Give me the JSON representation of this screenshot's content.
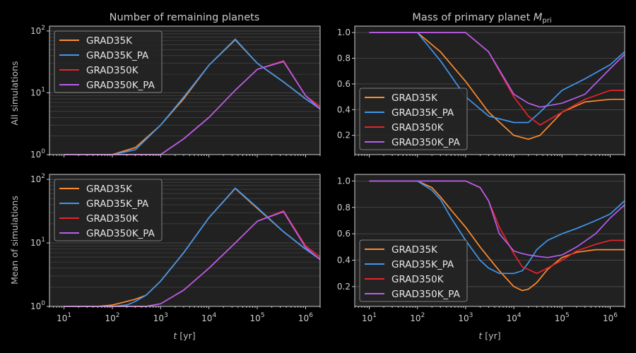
{
  "figure": {
    "titles": [
      "Number of remaining planets",
      "Mass of primary planet"
    ],
    "title_math": {
      "main": "M",
      "sub": "pri"
    },
    "row_labels": [
      "All simulations",
      "Mean of simulations"
    ],
    "xlabel": {
      "var": "t",
      "unit": "[yr]"
    }
  },
  "colors": {
    "GRAD35K": "#ff8c2e",
    "GRAD35K_PA": "#3f97f0",
    "GRAD350K": "#e6242c",
    "GRAD350K_PA": "#b65ef0",
    "background": "#000000",
    "axes_face": "#212121"
  },
  "chart_data": [
    {
      "id": "planets-all",
      "type": "line",
      "title": "Number of remaining planets",
      "ylabel": "All simulations",
      "xscale": "log",
      "yscale": "log",
      "xlim": [
        5,
        2000000
      ],
      "ylim": [
        1,
        120
      ],
      "legend": "top-left",
      "legend_entries": [
        "GRAD35K",
        "GRAD35K_PA",
        "GRAD350K",
        "GRAD350K_PA"
      ],
      "x": [
        10,
        100,
        300,
        1000,
        3000,
        10000,
        35000,
        100000,
        350000,
        1000000,
        2000000
      ],
      "series": [
        {
          "name": "GRAD35K",
          "values": [
            1,
            1,
            1.3,
            3,
            8,
            28,
            72,
            30,
            15,
            8,
            5.5
          ]
        },
        {
          "name": "GRAD35K_PA",
          "values": [
            1,
            1,
            1.2,
            3,
            8.5,
            28,
            74,
            30,
            15,
            8,
            5.5
          ]
        },
        {
          "name": "GRAD350K",
          "values": [
            1,
            1,
            1,
            1,
            1.8,
            4,
            11,
            24,
            33,
            9,
            6
          ]
        },
        {
          "name": "GRAD350K_PA",
          "values": [
            1,
            1,
            1,
            1,
            1.8,
            4,
            11,
            24,
            32,
            9,
            5.5
          ]
        }
      ]
    },
    {
      "id": "mass-all",
      "type": "line",
      "title": "Mass of primary planet",
      "xscale": "log",
      "xlim": [
        5,
        2000000
      ],
      "ylim": [
        0.05,
        1.05
      ],
      "yticks": [
        0.2,
        0.4,
        0.6,
        0.8,
        1.0
      ],
      "legend": "bottom-left",
      "legend_entries": [
        "GRAD35K",
        "GRAD35K_PA",
        "GRAD350K",
        "GRAD350K_PA"
      ],
      "x": [
        10,
        100,
        300,
        1000,
        3000,
        10000,
        20000,
        35000,
        100000,
        300000,
        1000000,
        2000000
      ],
      "series": [
        {
          "name": "GRAD35K",
          "values": [
            1,
            1,
            0.85,
            0.62,
            0.38,
            0.2,
            0.17,
            0.2,
            0.38,
            0.46,
            0.48,
            0.48
          ]
        },
        {
          "name": "GRAD35K_PA",
          "values": [
            1,
            1,
            0.78,
            0.5,
            0.35,
            0.3,
            0.3,
            0.38,
            0.55,
            0.64,
            0.75,
            0.85
          ]
        },
        {
          "name": "GRAD350K",
          "values": [
            1,
            1,
            1,
            1,
            0.85,
            0.5,
            0.35,
            0.28,
            0.38,
            0.48,
            0.55,
            0.55
          ]
        },
        {
          "name": "GRAD350K_PA",
          "values": [
            1,
            1,
            1,
            1,
            0.85,
            0.52,
            0.45,
            0.42,
            0.45,
            0.52,
            0.72,
            0.83
          ]
        }
      ]
    },
    {
      "id": "planets-mean",
      "type": "line",
      "ylabel": "Mean of simulations",
      "xscale": "log",
      "yscale": "log",
      "xlim": [
        5,
        2000000
      ],
      "ylim": [
        1,
        120
      ],
      "legend": "top-left",
      "legend_entries": [
        "GRAD35K",
        "GRAD35K_PA",
        "GRAD350K",
        "GRAD350K_PA"
      ],
      "x": [
        10,
        50,
        100,
        200,
        300,
        500,
        1000,
        3000,
        10000,
        35000,
        100000,
        350000,
        1000000,
        2000000
      ],
      "series": [
        {
          "name": "GRAD35K",
          "values": [
            1,
            1,
            1.05,
            1.2,
            1.3,
            1.5,
            2.5,
            7,
            25,
            72,
            35,
            15,
            8,
            5.5
          ]
        },
        {
          "name": "GRAD35K_PA",
          "values": [
            1,
            1,
            1,
            1.05,
            1.2,
            1.5,
            2.5,
            7,
            25,
            73,
            36,
            15,
            8,
            5.5
          ]
        },
        {
          "name": "GRAD350K",
          "values": [
            1,
            1,
            1,
            1,
            1,
            1,
            1.1,
            1.8,
            4,
            10,
            22,
            32,
            9,
            6
          ]
        },
        {
          "name": "GRAD350K_PA",
          "values": [
            1,
            1,
            1,
            1,
            1,
            1,
            1.1,
            1.8,
            4,
            10,
            22,
            31,
            8.5,
            5.5
          ]
        }
      ]
    },
    {
      "id": "mass-mean",
      "type": "line",
      "xscale": "log",
      "xlim": [
        5,
        2000000
      ],
      "ylim": [
        0.05,
        1.05
      ],
      "yticks": [
        0.2,
        0.4,
        0.6,
        0.8,
        1.0
      ],
      "legend": "bottom-left",
      "legend_entries": [
        "GRAD35K",
        "GRAD35K_PA",
        "GRAD350K",
        "GRAD350K_PA"
      ],
      "x": [
        10,
        100,
        200,
        300,
        500,
        1000,
        2000,
        3000,
        5000,
        10000,
        15000,
        20000,
        30000,
        50000,
        100000,
        200000,
        500000,
        1000000,
        2000000
      ],
      "series": [
        {
          "name": "GRAD35K",
          "values": [
            1,
            1,
            0.95,
            0.88,
            0.78,
            0.65,
            0.5,
            0.42,
            0.32,
            0.2,
            0.17,
            0.18,
            0.23,
            0.33,
            0.42,
            0.46,
            0.48,
            0.48,
            0.48
          ]
        },
        {
          "name": "GRAD35K_PA",
          "values": [
            1,
            1,
            0.93,
            0.86,
            0.72,
            0.55,
            0.4,
            0.34,
            0.3,
            0.3,
            0.32,
            0.38,
            0.48,
            0.55,
            0.6,
            0.64,
            0.7,
            0.75,
            0.85
          ]
        },
        {
          "name": "GRAD350K",
          "values": [
            1,
            1,
            1,
            1,
            1,
            1,
            0.95,
            0.85,
            0.65,
            0.45,
            0.35,
            0.33,
            0.3,
            0.34,
            0.4,
            0.47,
            0.52,
            0.55,
            0.55
          ]
        },
        {
          "name": "GRAD350K_PA",
          "values": [
            1,
            1,
            1,
            1,
            1,
            1,
            0.95,
            0.85,
            0.6,
            0.47,
            0.45,
            0.44,
            0.43,
            0.42,
            0.44,
            0.5,
            0.6,
            0.72,
            0.82
          ]
        }
      ]
    }
  ]
}
